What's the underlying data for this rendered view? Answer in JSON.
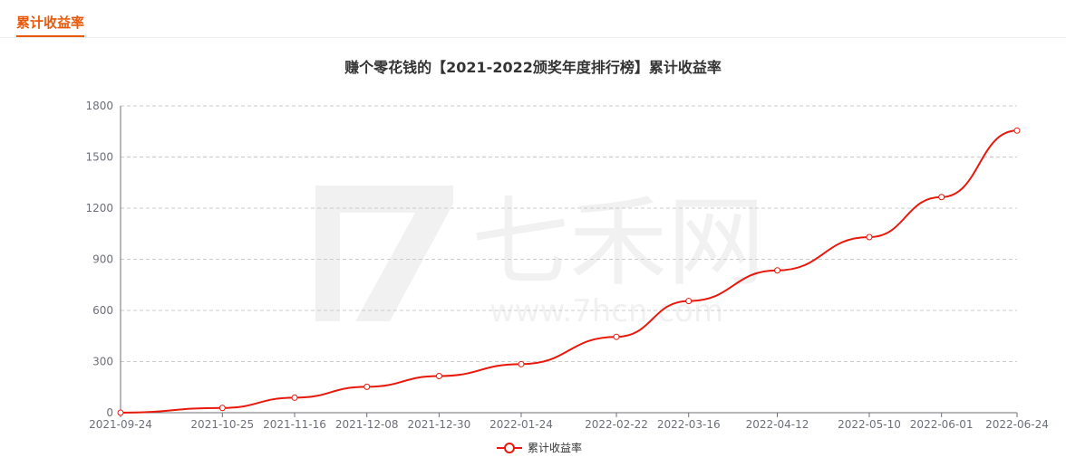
{
  "tab": {
    "label": "累计收益率"
  },
  "chart_data": {
    "type": "line",
    "title": "赚个零花钱的【2021-2022颁奖年度排行榜】累计收益率",
    "xlabel": "",
    "ylabel": "",
    "x_ticks": [
      "2021-09-24",
      "2021-10-25",
      "2021-11-16",
      "2021-12-08",
      "2021-12-30",
      "2022-01-24",
      "2022-02-22",
      "2022-03-16",
      "2022-04-12",
      "2022-05-10",
      "2022-06-01",
      "2022-06-24"
    ],
    "y_ticks": [
      0,
      300,
      600,
      900,
      1200,
      1500,
      1800
    ],
    "ylim": [
      0,
      1800
    ],
    "grid": true,
    "legend": "bottom-center",
    "watermark": {
      "brand": "七禾网",
      "url": "www.7hcn.com"
    },
    "colors": {
      "line": "#e8190c",
      "grid": "#cccccc",
      "axis": "#6e7079",
      "accent": "#e8590c"
    },
    "series": [
      {
        "name": "累计收益率",
        "x": [
          "2021-09-24",
          "2021-10-25",
          "2021-11-16",
          "2021-12-08",
          "2021-12-30",
          "2022-01-24",
          "2022-02-22",
          "2022-03-16",
          "2022-04-12",
          "2022-05-10",
          "2022-06-01",
          "2022-06-24"
        ],
        "y": [
          0,
          28,
          88,
          152,
          215,
          285,
          445,
          655,
          835,
          1030,
          1265,
          1655
        ]
      }
    ]
  }
}
